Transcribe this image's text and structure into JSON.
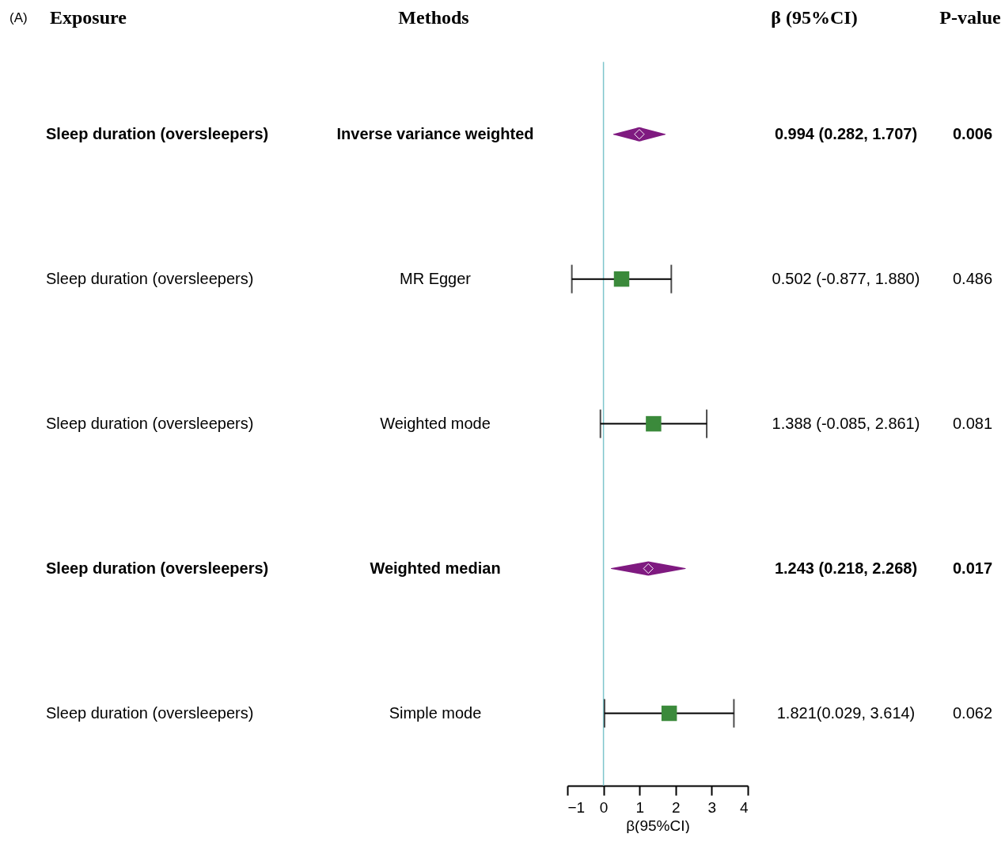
{
  "chart_data": {
    "type": "scatter",
    "orientation": "horizontal",
    "title": "(A)",
    "xlabel": "β(95%CI)",
    "categories": [
      "Inverse variance weighted",
      "MR Egger",
      "Weighted mode",
      "Weighted median",
      "Simple mode"
    ],
    "series": [
      {
        "color": "#7f1a80",
        "marker": "diamond",
        "values": [
          0.994,
          null,
          null,
          1.243,
          null
        ],
        "errors": [
          [
            0.282,
            1.707
          ],
          null,
          null,
          [
            0.218,
            2.268
          ],
          null
        ]
      },
      {
        "color": "#3b8a3b",
        "marker": "square",
        "values": [
          null,
          0.502,
          1.388,
          null,
          1.821
        ],
        "errors": [
          null,
          [
            -0.877,
            1.88
          ],
          [
            -0.085,
            2.861
          ],
          null,
          [
            0.029,
            3.614
          ]
        ]
      }
    ],
    "xlim": [
      -1,
      4
    ],
    "xticks": [
      -1,
      0,
      1,
      2,
      3,
      4
    ],
    "ref_lines": [
      {
        "axis": "x",
        "value": 0,
        "color": "#7fc6cc"
      }
    ],
    "annotations": [
      "Exposure",
      "Methods",
      "β (95%CI)",
      "P-value",
      "Sleep duration (oversleepers)",
      "Sleep duration (oversleepers)",
      "Sleep duration (oversleepers)",
      "Sleep duration (oversleepers)",
      "Sleep duration (oversleepers)",
      "0.994 (0.282, 1.707)",
      "0.502 (-0.877, 1.880)",
      "1.388 (-0.085, 2.861)",
      "1.243 (0.218, 2.268)",
      "1.821(0.029, 3.614)",
      "0.006",
      "0.486",
      "0.081",
      "0.017",
      "0.062"
    ]
  }
}
